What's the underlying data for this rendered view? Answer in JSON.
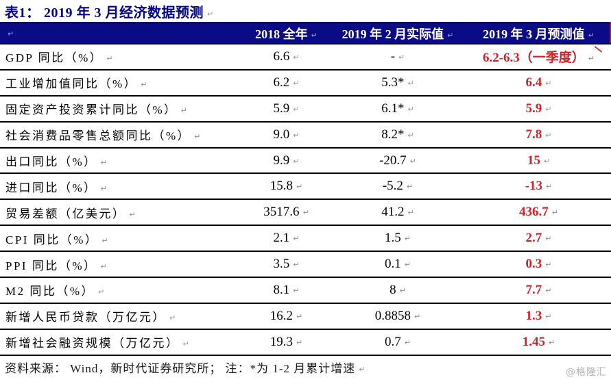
{
  "title": "表1： 2019 年 3 月经济数据预测",
  "marks": {
    "return": "↵"
  },
  "colors": {
    "header_bg": "#0b0b85",
    "title_navy": "#00008b",
    "forecast_red": "#cf2128",
    "row_border": "#000000",
    "watermark_gray": "#b3b3b3"
  },
  "table": {
    "header": {
      "col_indicator": "",
      "col_2018": "2018 全年",
      "col_feb": "2019 年 2 月实际值",
      "col_mar": "2019 年 3 月预测值"
    },
    "rows": [
      {
        "label": "GDP 同比（%）",
        "full_2018": "6.6",
        "feb_actual": "-",
        "mar_forecast": "6.2-6.3（一季度）"
      },
      {
        "label": "工业增加值同比（%）",
        "full_2018": "6.2",
        "feb_actual": "5.3*",
        "mar_forecast": "6.4"
      },
      {
        "label": "固定资产投资累计同比（%）",
        "full_2018": "5.9",
        "feb_actual": "6.1*",
        "mar_forecast": "5.9"
      },
      {
        "label": "社会消费品零售总额同比（%）",
        "full_2018": "9.0",
        "feb_actual": "8.2*",
        "mar_forecast": "7.8"
      },
      {
        "label": "出口同比（%）",
        "full_2018": "9.9",
        "feb_actual": "-20.7",
        "mar_forecast": "15"
      },
      {
        "label": "进口同比（%）",
        "full_2018": "15.8",
        "feb_actual": "-5.2",
        "mar_forecast": "-13"
      },
      {
        "label": "贸易差额（亿美元）",
        "full_2018": "3517.6",
        "feb_actual": "41.2",
        "mar_forecast": "436.7"
      },
      {
        "label": "CPI 同比（%）",
        "full_2018": "2.1",
        "feb_actual": "1.5",
        "mar_forecast": "2.7"
      },
      {
        "label": "PPI 同比（%）",
        "full_2018": "3.5",
        "feb_actual": "0.1",
        "mar_forecast": "0.3"
      },
      {
        "label": "M2 同比（%）",
        "full_2018": "8.1",
        "feb_actual": "8",
        "mar_forecast": "7.7"
      },
      {
        "label": "新增人民币贷款（万亿元）",
        "full_2018": "16.2",
        "feb_actual": "0.8858",
        "mar_forecast": "1.3"
      },
      {
        "label": "新增社会融资规模（万亿元）",
        "full_2018": "19.3",
        "feb_actual": "0.7",
        "mar_forecast": "1.45"
      }
    ]
  },
  "footnote": "资料来源： Wind，新时代证券研究所； 注：*为 1-2 月累计增速",
  "watermark": "@格隆汇"
}
